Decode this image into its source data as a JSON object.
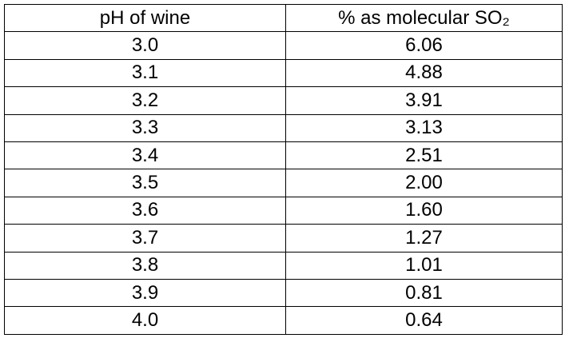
{
  "table": {
    "header": [
      "pH of wine",
      "% as molecular SO₂"
    ],
    "rows": [
      [
        "3.0",
        "6.06"
      ],
      [
        "3.1",
        "4.88"
      ],
      [
        "3.2",
        "3.91"
      ],
      [
        "3.3",
        "3.13"
      ],
      [
        "3.4",
        "2.51"
      ],
      [
        "3.5",
        "2.00"
      ],
      [
        "3.6",
        "1.60"
      ],
      [
        "3.7",
        "1.27"
      ],
      [
        "3.8",
        "1.01"
      ],
      [
        "3.9",
        "0.81"
      ],
      [
        "4.0",
        "0.64"
      ]
    ]
  }
}
